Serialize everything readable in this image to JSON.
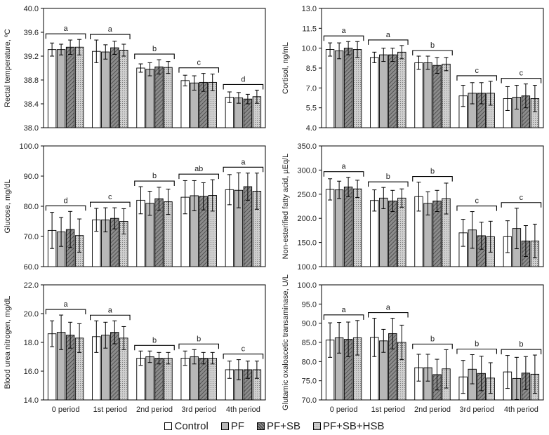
{
  "colors": {
    "Control": "#ffffff",
    "PF": "#b8b8b8",
    "PF+SB": "#8c8c8c",
    "PF+SB+HSB": "#c4c4c4",
    "hatch": "#555555",
    "axis": "#000000"
  },
  "legend": {
    "items": [
      {
        "name": "Control",
        "label": "Control",
        "color": "#ffffff"
      },
      {
        "name": "PF",
        "label": "PF",
        "color": "#b8b8b8"
      },
      {
        "name": "PF+SB",
        "label": "PF+SB",
        "color": "#8c8c8c"
      },
      {
        "name": "PF+SB+HSB",
        "label": "PF+SB+HSB",
        "color": "#c4c4c4"
      }
    ]
  },
  "chart_data": [
    {
      "type": "bar",
      "id": "rectal-temperature",
      "ylabel": "Rectal temperature, ºC",
      "categories": [
        "0 period",
        "1st period",
        "2nd period",
        "3rd period",
        "4th period"
      ],
      "ylim": [
        38.0,
        40.0
      ],
      "yticks": [
        "38.0",
        "38.4",
        "38.8",
        "39.2",
        "39.6",
        "40.0"
      ],
      "show_xlabels": false,
      "series": [
        {
          "name": "Control",
          "values": [
            39.31,
            39.28,
            39.0,
            38.79,
            38.51
          ],
          "errors": [
            0.11,
            0.19,
            0.07,
            0.09,
            0.09
          ]
        },
        {
          "name": "PF",
          "values": [
            39.31,
            39.27,
            38.98,
            38.75,
            38.5
          ],
          "errors": [
            0.09,
            0.12,
            0.11,
            0.12,
            0.09
          ]
        },
        {
          "name": "PF+SB",
          "values": [
            39.35,
            39.34,
            39.02,
            38.76,
            38.48
          ],
          "errors": [
            0.12,
            0.11,
            0.12,
            0.15,
            0.08
          ]
        },
        {
          "name": "PF+SB+HSB",
          "values": [
            39.35,
            39.3,
            39.01,
            38.76,
            38.52
          ],
          "errors": [
            0.13,
            0.1,
            0.1,
            0.14,
            0.11
          ]
        }
      ],
      "sig_letters": [
        "a",
        "a",
        "b",
        "c",
        "d"
      ]
    },
    {
      "type": "bar",
      "id": "cortisol",
      "ylabel": "Cortisol, ng/mL",
      "categories": [
        "0 period",
        "1st period",
        "2nd period",
        "3rd period",
        "4th period"
      ],
      "ylim": [
        4.0,
        13.0
      ],
      "yticks": [
        "4.0",
        "5.5",
        "7.0",
        "8.5",
        "10.0",
        "11.5",
        "13.0"
      ],
      "show_xlabels": false,
      "series": [
        {
          "name": "Control",
          "values": [
            9.9,
            9.3,
            8.9,
            6.4,
            6.2
          ],
          "errors": [
            0.5,
            0.4,
            0.5,
            0.8,
            0.9
          ]
        },
        {
          "name": "PF",
          "values": [
            9.8,
            9.5,
            8.9,
            6.6,
            6.3
          ],
          "errors": [
            0.6,
            0.5,
            0.5,
            0.8,
            0.9
          ]
        },
        {
          "name": "PF+SB",
          "values": [
            10.0,
            9.5,
            8.7,
            6.6,
            6.4
          ],
          "errors": [
            0.5,
            0.5,
            0.6,
            0.8,
            0.9
          ]
        },
        {
          "name": "PF+SB+HSB",
          "values": [
            9.9,
            9.7,
            8.8,
            6.6,
            6.2
          ],
          "errors": [
            0.6,
            0.5,
            0.5,
            0.9,
            1.0
          ]
        }
      ],
      "sig_letters": [
        "a",
        "a",
        "b",
        "c",
        "c"
      ]
    },
    {
      "type": "bar",
      "id": "glucose",
      "ylabel": "Glucose, mg/dL",
      "categories": [
        "0 period",
        "1st period",
        "2nd period",
        "3rd period",
        "4th period"
      ],
      "ylim": [
        60.0,
        100.0
      ],
      "yticks": [
        "60.0",
        "70.0",
        "80.0",
        "90.0",
        "100.0"
      ],
      "show_xlabels": false,
      "series": [
        {
          "name": "Control",
          "values": [
            72.0,
            75.5,
            82.0,
            83.0,
            85.5
          ],
          "errors": [
            6.0,
            3.8,
            4.5,
            5.5,
            5.0
          ]
        },
        {
          "name": "PF",
          "values": [
            71.5,
            75.5,
            81.0,
            83.5,
            85.3
          ],
          "errors": [
            4.8,
            4.0,
            4.0,
            5.0,
            5.8
          ]
        },
        {
          "name": "PF+SB",
          "values": [
            72.3,
            76.0,
            82.5,
            83.3,
            86.5
          ],
          "errors": [
            6.0,
            3.5,
            3.8,
            4.5,
            4.5
          ]
        },
        {
          "name": "PF+SB+HSB",
          "values": [
            70.3,
            75.0,
            81.5,
            83.6,
            85.0
          ],
          "errors": [
            5.5,
            4.2,
            4.2,
            5.2,
            6.0
          ]
        }
      ],
      "sig_letters": [
        "d",
        "c",
        "b",
        "ab",
        "a"
      ]
    },
    {
      "type": "bar",
      "id": "nefa",
      "ylabel": "Non-esterified fatty acid, µEq/L",
      "categories": [
        "0 period",
        "1st period",
        "2nd period",
        "3rd period",
        "4th period"
      ],
      "ylim": [
        100.0,
        350.0
      ],
      "yticks": [
        "100.0",
        "150.0",
        "200.0",
        "250.0",
        "300.0",
        "350.0"
      ],
      "show_xlabels": false,
      "series": [
        {
          "name": "Control",
          "values": [
            260,
            237,
            245,
            170,
            162
          ],
          "errors": [
            22,
            22,
            30,
            28,
            33
          ]
        },
        {
          "name": "PF",
          "values": [
            259,
            242,
            231,
            176,
            179
          ],
          "errors": [
            18,
            22,
            24,
            38,
            42
          ]
        },
        {
          "name": "PF+SB",
          "values": [
            265,
            236,
            236,
            164,
            153
          ],
          "errors": [
            20,
            22,
            22,
            28,
            32
          ]
        },
        {
          "name": "PF+SB+HSB",
          "values": [
            261,
            242,
            241,
            162,
            153
          ],
          "errors": [
            18,
            19,
            32,
            32,
            35
          ]
        }
      ],
      "sig_letters": [
        "a",
        "b",
        "b",
        "c",
        "c"
      ]
    },
    {
      "type": "bar",
      "id": "bun",
      "ylabel": "Blood urea nitrogen, mg/dL",
      "categories": [
        "0 period",
        "1st period",
        "2nd period",
        "3rd period",
        "4th period"
      ],
      "ylim": [
        14.0,
        22.0
      ],
      "yticks": [
        "14.0",
        "16.0",
        "18.0",
        "20.0",
        "22.0"
      ],
      "show_xlabels": true,
      "series": [
        {
          "name": "Control",
          "values": [
            18.6,
            18.4,
            16.9,
            16.9,
            16.1
          ],
          "errors": [
            0.9,
            1.1,
            0.5,
            0.5,
            0.6
          ]
        },
        {
          "name": "PF",
          "values": [
            18.7,
            18.5,
            17.0,
            17.0,
            16.1
          ],
          "errors": [
            1.2,
            0.9,
            0.4,
            0.5,
            0.7
          ]
        },
        {
          "name": "PF+SB",
          "values": [
            18.5,
            18.7,
            16.9,
            16.9,
            16.1
          ],
          "errors": [
            0.9,
            0.8,
            0.4,
            0.4,
            0.6
          ]
        },
        {
          "name": "PF+SB+HSB",
          "values": [
            18.3,
            18.3,
            16.9,
            16.9,
            16.1
          ],
          "errors": [
            1.0,
            0.8,
            0.4,
            0.4,
            0.6
          ]
        }
      ],
      "sig_letters": [
        "a",
        "a",
        "b",
        "b",
        "c"
      ]
    },
    {
      "type": "bar",
      "id": "got",
      "ylabel": "Glutamic oxaloacetic transaminase, U/L",
      "categories": [
        "0 period",
        "1st period",
        "2nd period",
        "3rd period",
        "4th period"
      ],
      "ylim": [
        70.0,
        100.0
      ],
      "yticks": [
        "70.0",
        "75.0",
        "80.0",
        "85.0",
        "90.0",
        "95.0",
        "100.0"
      ],
      "show_xlabels": true,
      "series": [
        {
          "name": "Control",
          "values": [
            85.6,
            86.3,
            78.4,
            76.0,
            77.3
          ],
          "errors": [
            4.5,
            5.0,
            3.5,
            4.3,
            4.3
          ]
        },
        {
          "name": "PF",
          "values": [
            86.2,
            85.4,
            78.4,
            78.0,
            75.6
          ],
          "errors": [
            4.0,
            3.0,
            3.5,
            3.8,
            5.5
          ]
        },
        {
          "name": "PF+SB",
          "values": [
            85.8,
            87.3,
            76.6,
            76.9,
            77.0
          ],
          "errors": [
            4.5,
            4.0,
            4.0,
            4.5,
            4.3
          ]
        },
        {
          "name": "PF+SB+HSB",
          "values": [
            86.2,
            85.0,
            78.1,
            75.7,
            76.7
          ],
          "errors": [
            4.5,
            4.5,
            5.0,
            4.0,
            5.0
          ]
        }
      ],
      "sig_letters": [
        "a",
        "a",
        "b",
        "b",
        "b"
      ]
    }
  ]
}
